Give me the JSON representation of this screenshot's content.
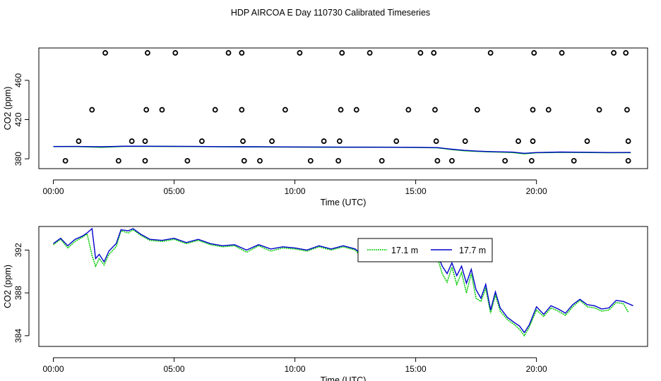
{
  "figure": {
    "title": "HDP AIRCOA E  Day 110730  Calibrated Timeseries"
  },
  "colors": {
    "series_a": "#00cc00",
    "series_b": "#0000cc",
    "points": "#000000",
    "axis": "#000000"
  },
  "chart_data": [
    {
      "type": "scatter",
      "title": "",
      "xlabel": "Time (UTC)",
      "ylabel": "CO2 (ppm)",
      "xlim": [
        -0.6,
        24.6
      ],
      "ylim": [
        370,
        493
      ],
      "x_ticks": [
        {
          "v": 0,
          "label": "00:00"
        },
        {
          "v": 5,
          "label": "05:00"
        },
        {
          "v": 10,
          "label": "10:00"
        },
        {
          "v": 15,
          "label": "15:00"
        },
        {
          "v": 20,
          "label": "20:00"
        }
      ],
      "y_ticks": [
        {
          "v": 380,
          "label": "380"
        },
        {
          "v": 420,
          "label": "420"
        },
        {
          "v": 460,
          "label": "460"
        }
      ],
      "points": {
        "x": [
          2.15,
          3.9,
          5.05,
          7.25,
          7.8,
          10.2,
          11.95,
          13.1,
          15.2,
          15.75,
          18.1,
          19.9,
          21.05,
          23.2,
          23.7,
          1.6,
          3.85,
          4.5,
          6.7,
          7.8,
          9.6,
          11.9,
          12.55,
          14.7,
          15.8,
          17.55,
          19.85,
          20.5,
          22.6,
          23.75,
          1.05,
          3.25,
          3.8,
          6.15,
          7.85,
          9.05,
          11.2,
          11.85,
          14.2,
          15.85,
          17.05,
          19.25,
          19.85,
          22.1,
          23.8,
          0.5,
          2.7,
          3.8,
          5.55,
          7.9,
          8.55,
          10.65,
          11.8,
          13.6,
          15.9,
          16.5,
          18.7,
          19.8,
          21.55,
          23.8
        ],
        "y": [
          488,
          488,
          488,
          488,
          488,
          488,
          488,
          488,
          488,
          488,
          488,
          488,
          488,
          488,
          488,
          430,
          430,
          430,
          430,
          430,
          430,
          430,
          430,
          430,
          430,
          430,
          430,
          430,
          430,
          430,
          398,
          398,
          398,
          398,
          398,
          398,
          398,
          398,
          398,
          398,
          398,
          398,
          398,
          398,
          398,
          378,
          378,
          378,
          378,
          378,
          378,
          378,
          378,
          378,
          378,
          378,
          378,
          378,
          378,
          378
        ]
      },
      "series": [
        {
          "key": "a",
          "x": [
            0,
            1,
            2,
            3,
            4,
            5,
            6,
            7,
            8,
            9,
            10,
            11,
            12,
            13,
            14,
            15,
            15.9,
            16.5,
            17.0,
            17.5,
            18,
            19,
            19.5,
            20,
            21,
            22,
            23,
            23.9
          ],
          "y": [
            392.5,
            392.5,
            391.8,
            392.8,
            392.7,
            392.6,
            392.5,
            392.3,
            392.2,
            392.1,
            392.0,
            391.9,
            391.8,
            391.8,
            391.8,
            391.6,
            391.2,
            389.5,
            388.3,
            387.6,
            387.2,
            386.5,
            385.2,
            386.2,
            386.7,
            386.5,
            386.2,
            386.3
          ]
        },
        {
          "key": "b",
          "x": [
            0,
            1,
            2,
            3,
            4,
            5,
            6,
            7,
            8,
            9,
            10,
            11,
            12,
            13,
            14,
            15,
            15.9,
            16.5,
            17.0,
            17.5,
            18,
            19,
            19.5,
            20,
            21,
            22,
            23,
            23.9
          ],
          "y": [
            392.5,
            392.6,
            392.3,
            392.9,
            392.8,
            392.7,
            392.6,
            392.4,
            392.3,
            392.2,
            392.1,
            392.0,
            391.9,
            391.9,
            391.8,
            391.7,
            391.4,
            389.8,
            388.6,
            387.9,
            387.4,
            386.8,
            385.6,
            386.4,
            386.9,
            386.7,
            386.4,
            386.5
          ]
        }
      ]
    },
    {
      "type": "line",
      "title": "",
      "xlabel": "Time (UTC)",
      "ylabel": "CO2 (ppm)",
      "xlim": [
        -0.6,
        24.6
      ],
      "ylim": [
        383,
        394.2
      ],
      "x_ticks": [
        {
          "v": 0,
          "label": "00:00"
        },
        {
          "v": 5,
          "label": "05:00"
        },
        {
          "v": 10,
          "label": "10:00"
        },
        {
          "v": 15,
          "label": "15:00"
        },
        {
          "v": 20,
          "label": "20:00"
        }
      ],
      "y_ticks": [
        {
          "v": 384,
          "label": "384"
        },
        {
          "v": 388,
          "label": "388"
        },
        {
          "v": 392,
          "label": "392"
        }
      ],
      "legend": {
        "position": "top-center",
        "entries": [
          "17.1 m",
          "17.7 m"
        ]
      },
      "series": [
        {
          "name": "17.1 m",
          "x": [
            0,
            0.3,
            0.6,
            0.9,
            1.2,
            1.4,
            1.6,
            1.75,
            1.9,
            2.1,
            2.3,
            2.6,
            2.8,
            3.1,
            3.3,
            3.6,
            4.0,
            4.5,
            5.0,
            5.5,
            6.0,
            6.5,
            7.0,
            7.5,
            8.0,
            8.5,
            9.0,
            9.5,
            10.0,
            10.5,
            11.0,
            11.5,
            12.0,
            12.5,
            12.8,
            13.1,
            13.5,
            14.0,
            14.5,
            15.0,
            15.3,
            15.6,
            15.9,
            16.1,
            16.3,
            16.5,
            16.7,
            16.9,
            17.1,
            17.3,
            17.5,
            17.7,
            17.9,
            18.1,
            18.3,
            18.5,
            18.8,
            19.1,
            19.3,
            19.5,
            19.7,
            20.0,
            20.3,
            20.6,
            20.9,
            21.2,
            21.5,
            21.8,
            22.1,
            22.4,
            22.7,
            23.0,
            23.3,
            23.6,
            23.8
          ],
          "y": [
            392.5,
            393.0,
            392.2,
            392.8,
            393.2,
            393.5,
            391.5,
            390.5,
            391.2,
            390.6,
            391.6,
            392.3,
            393.8,
            393.6,
            393.9,
            393.4,
            392.9,
            392.8,
            393.0,
            392.6,
            392.9,
            392.5,
            392.3,
            392.4,
            391.8,
            392.4,
            391.9,
            392.2,
            392.1,
            391.9,
            392.3,
            392.0,
            392.3,
            392.0,
            391.2,
            391.9,
            391.6,
            392.0,
            391.8,
            391.9,
            392.0,
            391.8,
            391.3,
            389.8,
            389.0,
            390.4,
            388.8,
            389.9,
            388.0,
            389.8,
            387.5,
            387.2,
            388.4,
            386.1,
            387.8,
            386.3,
            385.5,
            385.0,
            384.6,
            384.0,
            384.8,
            386.4,
            385.8,
            386.6,
            386.3,
            385.9,
            386.7,
            387.3,
            386.7,
            386.6,
            386.3,
            386.4,
            387.1,
            387.0,
            386.2
          ]
        },
        {
          "name": "17.7 m",
          "x": [
            0,
            0.3,
            0.6,
            0.9,
            1.2,
            1.4,
            1.6,
            1.75,
            1.9,
            2.1,
            2.3,
            2.6,
            2.8,
            3.1,
            3.3,
            3.6,
            4.0,
            4.5,
            5.0,
            5.5,
            6.0,
            6.5,
            7.0,
            7.5,
            8.0,
            8.5,
            9.0,
            9.5,
            10.0,
            10.5,
            11.0,
            11.5,
            12.0,
            12.5,
            12.8,
            13.1,
            13.5,
            14.0,
            14.5,
            15.0,
            15.3,
            15.6,
            15.9,
            16.1,
            16.3,
            16.5,
            16.7,
            16.9,
            17.1,
            17.3,
            17.5,
            17.7,
            17.9,
            18.1,
            18.3,
            18.5,
            18.8,
            19.1,
            19.3,
            19.5,
            19.7,
            20.0,
            20.3,
            20.6,
            20.9,
            21.2,
            21.5,
            21.8,
            22.1,
            22.4,
            22.7,
            23.0,
            23.3,
            23.6,
            24.0
          ],
          "y": [
            392.6,
            393.1,
            392.4,
            393.0,
            393.3,
            393.6,
            394.0,
            391.2,
            391.6,
            390.9,
            391.9,
            392.6,
            393.9,
            393.8,
            394.0,
            393.5,
            393.0,
            392.9,
            393.1,
            392.7,
            393.0,
            392.6,
            392.4,
            392.5,
            392.0,
            392.5,
            392.1,
            392.3,
            392.2,
            392.0,
            392.4,
            392.1,
            392.4,
            392.1,
            391.5,
            392.1,
            391.8,
            392.1,
            391.9,
            392.0,
            392.3,
            392.0,
            391.6,
            390.5,
            389.8,
            390.8,
            389.6,
            390.5,
            388.9,
            390.2,
            388.3,
            387.5,
            388.8,
            386.4,
            388.1,
            386.6,
            385.7,
            385.2,
            384.9,
            384.3,
            385.0,
            386.7,
            386.0,
            386.8,
            386.5,
            386.1,
            386.9,
            387.4,
            386.9,
            386.8,
            386.5,
            386.6,
            387.3,
            387.2,
            386.8
          ]
        }
      ]
    }
  ]
}
